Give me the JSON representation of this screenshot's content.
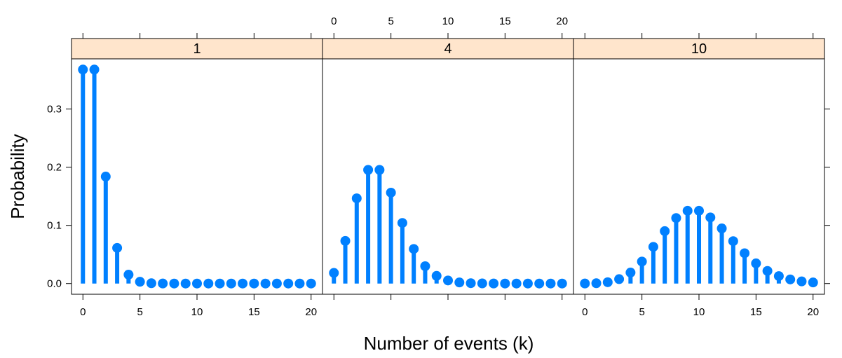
{
  "chart_data": {
    "type": "lollipop",
    "xlabel": "Number of events (k)",
    "ylabel": "Probability",
    "x": [
      0,
      1,
      2,
      3,
      4,
      5,
      6,
      7,
      8,
      9,
      10,
      11,
      12,
      13,
      14,
      15,
      16,
      17,
      18,
      19,
      20
    ],
    "xlim": [
      -1,
      21
    ],
    "ylim": [
      -0.0184,
      0.3863
    ],
    "x_ticks": [
      0,
      5,
      10,
      15,
      20
    ],
    "y_ticks": [
      0.0,
      0.1,
      0.2,
      0.3
    ],
    "y_tick_labels": [
      "0.0",
      "0.1",
      "0.2",
      "0.3"
    ],
    "x_tick_labels": [
      "0",
      "5",
      "10",
      "15",
      "20"
    ],
    "grid": false,
    "panels": [
      {
        "label": "1",
        "values": [
          0.3679,
          0.3679,
          0.1839,
          0.0613,
          0.0153,
          0.0031,
          0.0005,
          0.0001,
          0,
          0,
          0,
          0,
          0,
          0,
          0,
          0,
          0,
          0,
          0,
          0,
          0
        ]
      },
      {
        "label": "4",
        "values": [
          0.0183,
          0.0733,
          0.1465,
          0.1954,
          0.1954,
          0.1563,
          0.1042,
          0.0595,
          0.0298,
          0.0132,
          0.0053,
          0.0019,
          0.0006,
          0.0002,
          0.0001,
          0,
          0,
          0,
          0,
          0,
          0
        ]
      },
      {
        "label": "10",
        "values": [
          5e-05,
          0.0005,
          0.0023,
          0.0076,
          0.0189,
          0.0378,
          0.0631,
          0.0901,
          0.1126,
          0.1251,
          0.1251,
          0.1137,
          0.0948,
          0.0729,
          0.0521,
          0.0347,
          0.0217,
          0.0128,
          0.0071,
          0.0037,
          0.0019
        ]
      }
    ],
    "colors": {
      "series": "#0080ff",
      "strip": "#ffe5cc"
    }
  }
}
